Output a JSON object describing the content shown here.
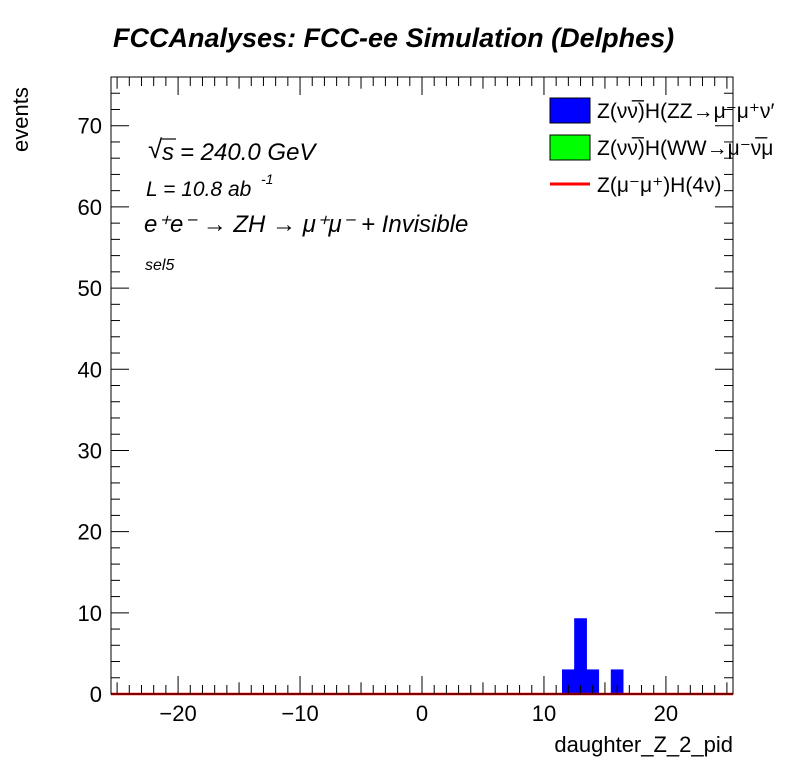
{
  "title": "FCCAnalyses: FCC-ee Simulation (Delphes)",
  "annotations": {
    "sqrt_s": "= 240.0 GeV",
    "lumi": "L = 10.8 ab",
    "lumi_exp": "-1",
    "process_lhs": "e⁺e⁻ → ZH → μ⁺μ⁻ + Invisible",
    "selection": "sel5"
  },
  "legend": {
    "position": "top-right",
    "items": [
      {
        "label": "Z(νν̅)H(ZZ→μ⁻μ⁺ν′",
        "color": "#0000ff",
        "style": "box"
      },
      {
        "label": "Z(νν̅)H(WW→μ⁻ν̅μ",
        "color": "#00ff00",
        "style": "box"
      },
      {
        "label": "Z(μ⁻μ⁺)H(4ν)",
        "color": "#ff0000",
        "style": "line"
      }
    ]
  },
  "chart_data": {
    "type": "bar",
    "title": "FCCAnalyses: FCC-ee Simulation (Delphes)",
    "xlabel": "daughter_Z_2_pid",
    "ylabel": "events",
    "xlim": [
      -25.5,
      25.5
    ],
    "ylim": [
      0,
      76
    ],
    "xticks": [
      -20,
      -10,
      0,
      10,
      20
    ],
    "xtick_labels": [
      "−20",
      "−10",
      "0",
      "10",
      "20"
    ],
    "yticks": [
      0,
      10,
      20,
      30,
      40,
      50,
      60,
      70
    ],
    "bin_width": 1,
    "series": [
      {
        "name": "Z(νν̅)H(ZZ→μ⁻μ⁺ν′",
        "color": "#0000ff",
        "bins": [
          {
            "x0": 11.5,
            "value": 3.0
          },
          {
            "x0": 12.5,
            "value": 9.3
          },
          {
            "x0": 13.5,
            "value": 3.0
          },
          {
            "x0": 15.5,
            "value": 3.0
          }
        ]
      },
      {
        "name": "Z(νν̅)H(WW→μ⁻ν̅μ",
        "color": "#00ff00",
        "bins": []
      },
      {
        "name": "Z(μ⁻μ⁺)H(4ν)",
        "color": "#ff0000",
        "style": "line",
        "value": 0
      }
    ]
  }
}
